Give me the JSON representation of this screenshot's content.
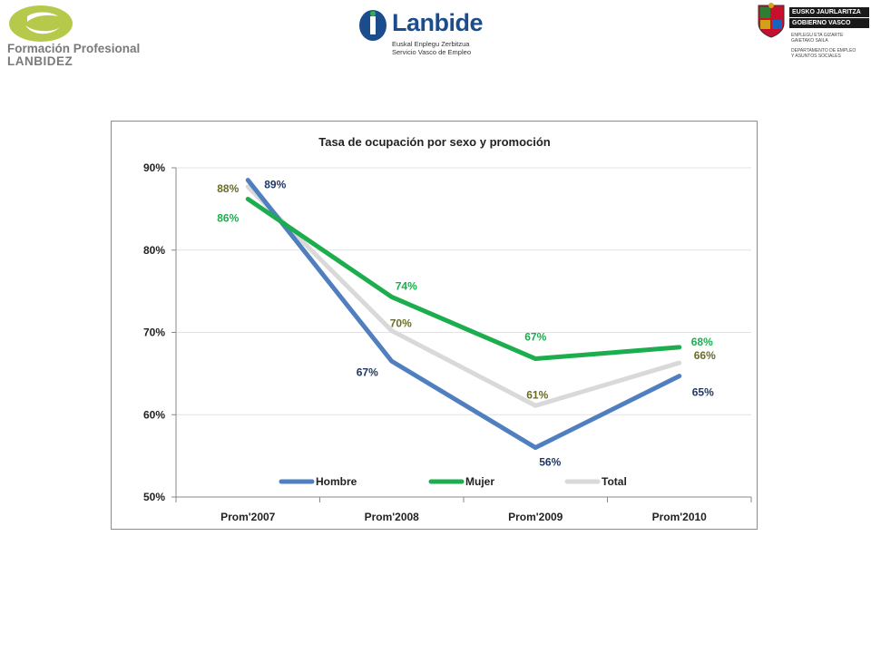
{
  "header": {
    "left_logo": {
      "line1": "Formación Profesional",
      "line2": "LANBIDEZ"
    },
    "center_logo": {
      "brand": "Lanbide",
      "sub1": "Euskal Enplegu Zerbitzua",
      "sub2": "Servicio Vasco de Empleo"
    },
    "right_logo": {
      "bar1": "EUSKO JAURLARITZA",
      "bar2": "GOBIERNO VASCO",
      "dept1a": "ENPLEGU ETA GIZARTE",
      "dept1b": "GAIETAKO SAILA",
      "dept2a": "DEPARTAMENTO DE EMPLEO",
      "dept2b": "Y ASUNTOS SOCIALES"
    }
  },
  "chart_data": {
    "type": "line",
    "title": "Tasa de ocupación por sexo y promoción",
    "categories": [
      "Prom'2007",
      "Prom'2008",
      "Prom'2009",
      "Prom'2010"
    ],
    "ylim": [
      0.5,
      0.9
    ],
    "yticks": [
      0.5,
      0.6,
      0.7,
      0.8,
      0.9
    ],
    "ytick_labels": [
      "50%",
      "60%",
      "70%",
      "80%",
      "90%"
    ],
    "grid": true,
    "legend_position": "bottom-inside",
    "series": [
      {
        "name": "Hombre",
        "color": "#4f7fbf",
        "label_color": "#1f3864",
        "values": [
          0.885,
          0.665,
          0.56,
          0.647
        ],
        "labels": [
          "89%",
          "67%",
          "56%",
          "65%"
        ]
      },
      {
        "name": "Mujer",
        "color": "#1cae4e",
        "label_color": "#1cae4e",
        "values": [
          0.862,
          0.743,
          0.668,
          0.682
        ],
        "labels": [
          "86%",
          "74%",
          "67%",
          "68%"
        ]
      },
      {
        "name": "Total",
        "color": "#d9d9d9",
        "label_color": "#6b6b2a",
        "values": [
          0.877,
          0.702,
          0.611,
          0.663
        ],
        "labels": [
          "88%",
          "70%",
          "61%",
          "66%"
        ]
      }
    ]
  }
}
